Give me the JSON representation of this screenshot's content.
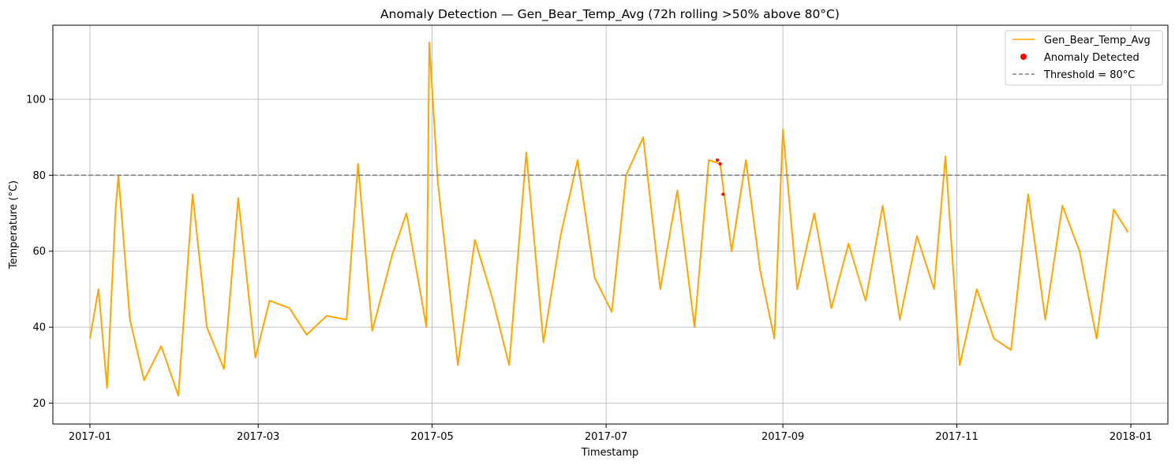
{
  "chart_data": {
    "type": "line",
    "title": "Anomaly Detection — Gen_Bear_Temp_Avg (72h rolling >50% above 80°C)",
    "xlabel": "Timestamp",
    "ylabel": "Temperature (°C)",
    "x_range": [
      "2016-12-19",
      "2018-01-14"
    ],
    "ylim": [
      14.5,
      119.5
    ],
    "x_ticks": [
      "2017-01",
      "2017-03",
      "2017-05",
      "2017-07",
      "2017-09",
      "2017-11",
      "2018-01"
    ],
    "y_ticks": [
      20,
      40,
      60,
      80,
      100
    ],
    "grid": true,
    "legend_position": "top-right",
    "colors": {
      "series": "#ffa500",
      "anomaly": "#ff0000",
      "threshold": "#808080",
      "grid": "#b0b0b0"
    },
    "threshold": {
      "name": "Threshold = 80°C",
      "value": 80
    },
    "series": [
      {
        "name": "Gen_Bear_Temp_Avg",
        "x": [
          "2017-01-01",
          "2017-01-04",
          "2017-01-07",
          "2017-01-10",
          "2017-01-11",
          "2017-01-15",
          "2017-01-20",
          "2017-01-26",
          "2017-02-01",
          "2017-02-06",
          "2017-02-11",
          "2017-02-17",
          "2017-02-22",
          "2017-02-28",
          "2017-03-05",
          "2017-03-12",
          "2017-03-18",
          "2017-03-25",
          "2017-04-01",
          "2017-04-05",
          "2017-04-10",
          "2017-04-17",
          "2017-04-22",
          "2017-04-29",
          "2017-04-30",
          "2017-05-03",
          "2017-05-10",
          "2017-05-16",
          "2017-05-22",
          "2017-05-28",
          "2017-06-03",
          "2017-06-09",
          "2017-06-15",
          "2017-06-21",
          "2017-06-27",
          "2017-07-03",
          "2017-07-08",
          "2017-07-14",
          "2017-07-20",
          "2017-07-26",
          "2017-08-01",
          "2017-08-06",
          "2017-08-10",
          "2017-08-14",
          "2017-08-19",
          "2017-08-24",
          "2017-08-29",
          "2017-09-01",
          "2017-09-06",
          "2017-09-12",
          "2017-09-18",
          "2017-09-24",
          "2017-09-30",
          "2017-10-06",
          "2017-10-12",
          "2017-10-18",
          "2017-10-24",
          "2017-10-28",
          "2017-11-02",
          "2017-11-08",
          "2017-11-14",
          "2017-11-20",
          "2017-11-26",
          "2017-12-02",
          "2017-12-08",
          "2017-12-14",
          "2017-12-20",
          "2017-12-26",
          "2017-12-31"
        ],
        "values": [
          37,
          50,
          24,
          71,
          80,
          42,
          26,
          35,
          22,
          75,
          40,
          29,
          74,
          32,
          47,
          45,
          38,
          43,
          42,
          83,
          39,
          59,
          70,
          40,
          115,
          78,
          30,
          63,
          48,
          30,
          86,
          36,
          64,
          84,
          53,
          44,
          80,
          90,
          50,
          76,
          40,
          84,
          83,
          60,
          84,
          55,
          37,
          92,
          50,
          70,
          45,
          62,
          47,
          72,
          42,
          64,
          50,
          85,
          30,
          50,
          37,
          34,
          75,
          42,
          72,
          60,
          37,
          71,
          65
        ]
      },
      {
        "name": "Anomaly Detected",
        "x": [
          "2017-08-09",
          "2017-08-10",
          "2017-08-11"
        ],
        "values": [
          84,
          83,
          75
        ]
      }
    ]
  }
}
